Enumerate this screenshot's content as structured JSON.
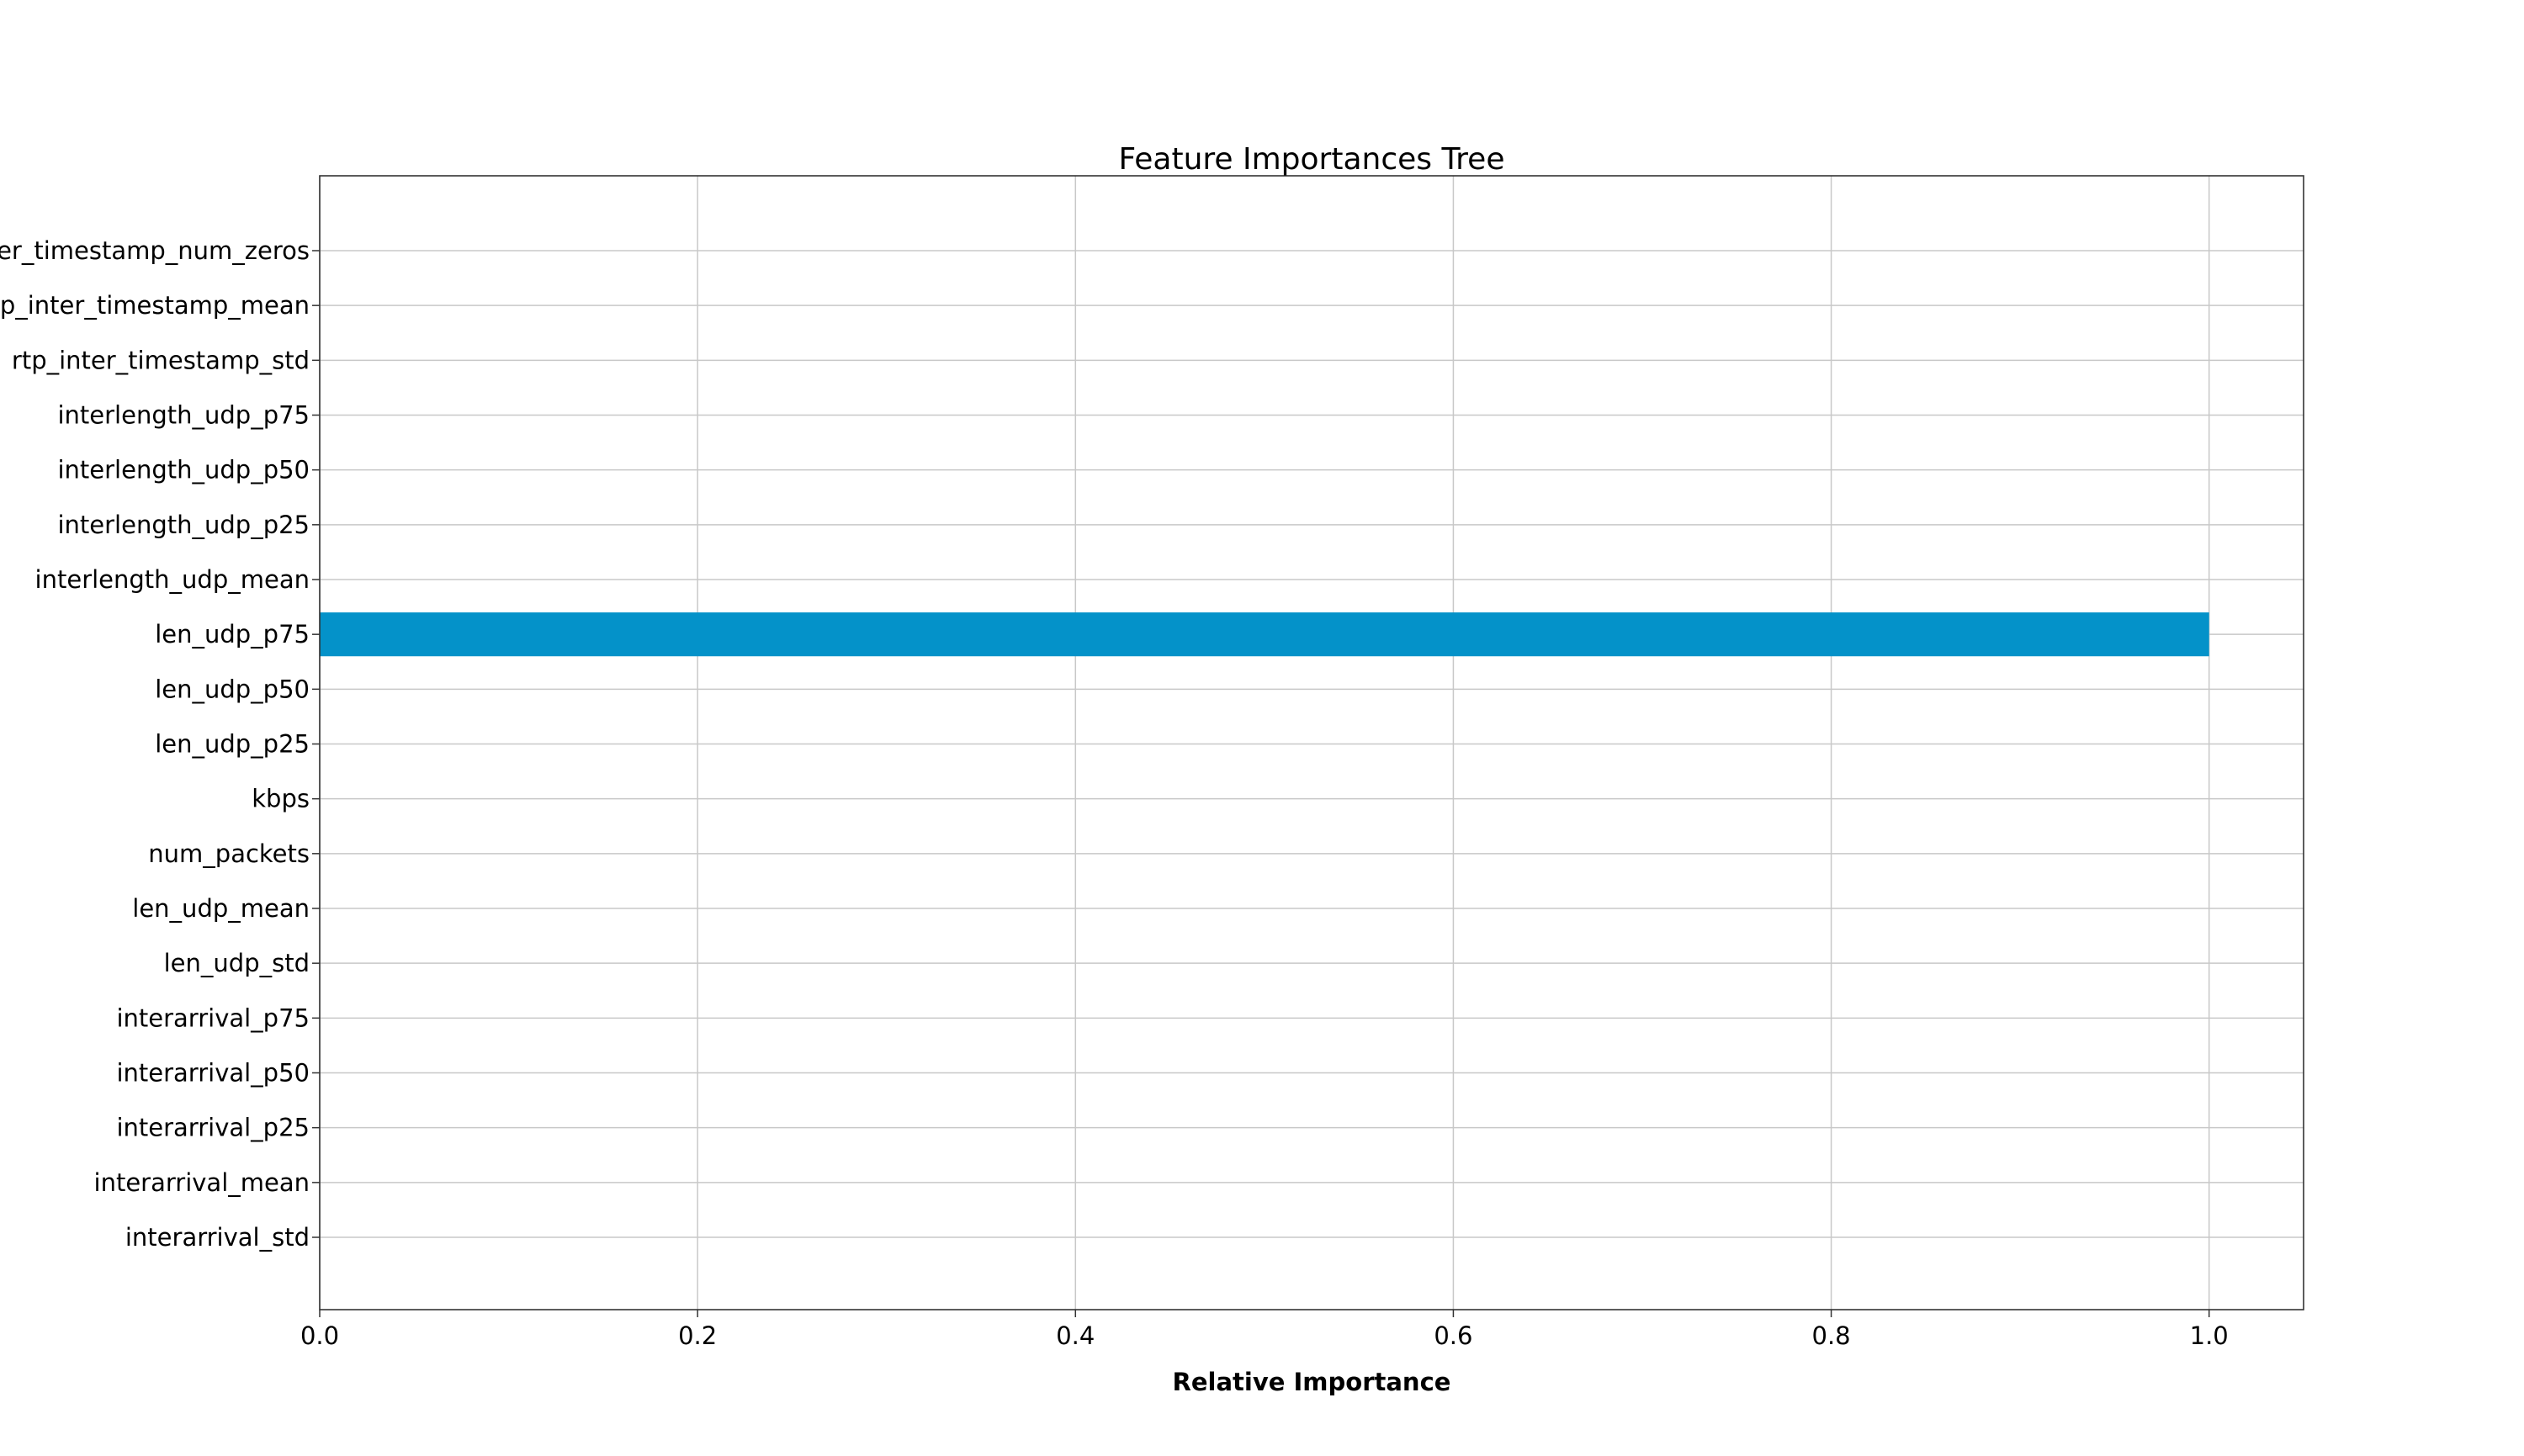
{
  "chart_data": {
    "type": "bar",
    "orientation": "horizontal",
    "title": "Feature Importances Tree",
    "xlabel": "Relative Importance",
    "ylabel": "",
    "xlim": [
      0,
      1.05
    ],
    "xticks": [
      "0.0",
      "0.2",
      "0.4",
      "0.6",
      "0.8",
      "1.0"
    ],
    "xtick_values": [
      0,
      0.2,
      0.4,
      0.6,
      0.8,
      1.0
    ],
    "grid": true,
    "bar_color": "#0492c9",
    "categories": [
      "ter_timestamp_num_zeros",
      "tp_inter_timestamp_mean",
      "rtp_inter_timestamp_std",
      "interlength_udp_p75",
      "interlength_udp_p50",
      "interlength_udp_p25",
      "interlength_udp_mean",
      "len_udp_p75",
      "len_udp_p50",
      "len_udp_p25",
      "kbps",
      "num_packets",
      "len_udp_mean",
      "len_udp_std",
      "interarrival_p75",
      "interarrival_p50",
      "interarrival_p25",
      "interarrival_mean",
      "interarrival_std"
    ],
    "values": [
      0,
      0,
      0,
      0,
      0,
      0,
      0,
      1.0,
      0,
      0,
      0,
      0,
      0,
      0,
      0,
      0,
      0,
      0,
      0
    ]
  }
}
